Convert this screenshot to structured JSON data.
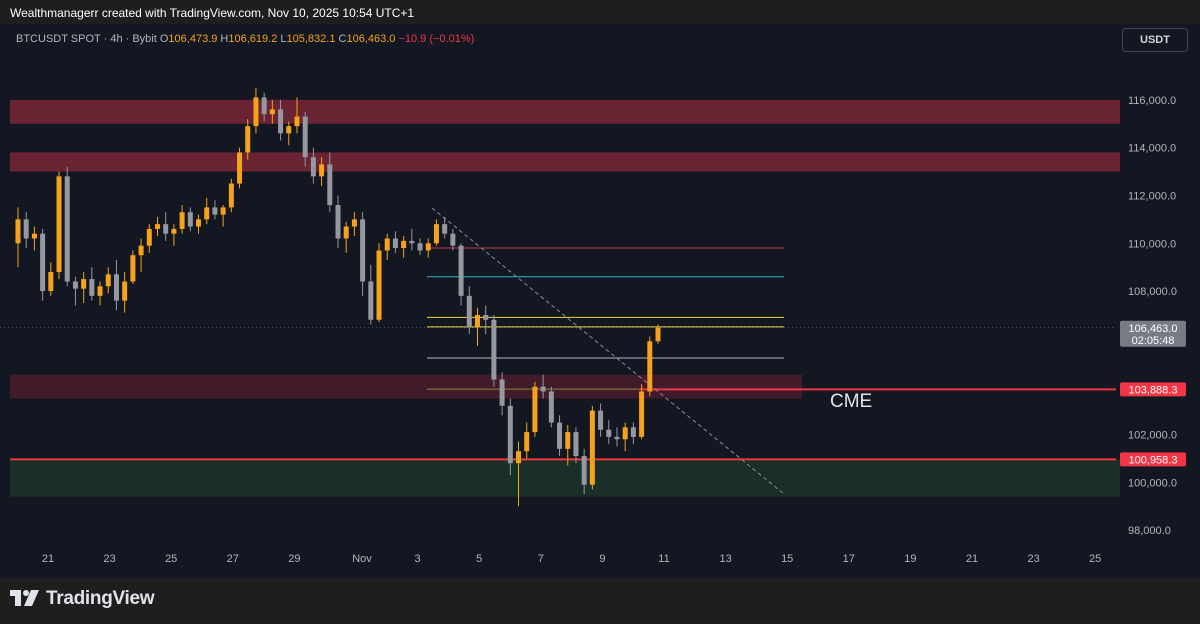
{
  "header": {
    "attribution": "Wealthmanagerr created with TradingView.com, Nov 10, 2025 10:54 UTC+1"
  },
  "legend": {
    "symbol": "BTCUSDT SPOT · 4h · Bybit",
    "o_label": "O",
    "o": "106,473.9",
    "h_label": "H",
    "h": "106,619.2",
    "l_label": "L",
    "l": "105,832.1",
    "c_label": "C",
    "c": "106,463.0",
    "change": "−10.9 (−0.01%)"
  },
  "toolbar": {
    "currency": "USDT"
  },
  "footer": {
    "brand": "TradingView"
  },
  "chart_data": {
    "type": "candlestick",
    "ylim": [
      97000,
      117500
    ],
    "y_ticks": [
      "116,000.0",
      "114,000.0",
      "112,000.0",
      "110,000.0",
      "108,000.0",
      "102,000.0",
      "100,000.0",
      "98,000.0"
    ],
    "x_ticks": [
      "21",
      "23",
      "25",
      "27",
      "29",
      "Nov",
      "3",
      "5",
      "7",
      "9",
      "11",
      "13",
      "15",
      "17",
      "19",
      "21",
      "23",
      "25"
    ],
    "price_labels": [
      {
        "price": 106463,
        "text": "106,463.0",
        "sub": "02:05:48",
        "color": "#787b86"
      },
      {
        "price": 103888.3,
        "text": "103,888.3",
        "color": "#f23645"
      },
      {
        "price": 100958.3,
        "text": "100,958.3",
        "color": "#f23645"
      }
    ],
    "zones": [
      {
        "top": 116000,
        "bottom": 115000,
        "color": "#7a2636"
      },
      {
        "top": 113800,
        "bottom": 113000,
        "color": "#7a2636"
      },
      {
        "top": 104500,
        "bottom": 103500,
        "color": "#4a1c2a"
      },
      {
        "top": 100958,
        "bottom": 99400,
        "color": "#1c3428"
      }
    ],
    "hlines": [
      {
        "price": 109800,
        "color": "#c2354a"
      },
      {
        "price": 108600,
        "color": "#2fb7c9"
      },
      {
        "price": 106900,
        "color": "#f2d43c"
      },
      {
        "price": 106500,
        "color": "#f2d43c"
      },
      {
        "price": 105200,
        "color": "#b2b5be"
      },
      {
        "price": 103900,
        "color": "#8a8a3a"
      }
    ],
    "annotation": "CME",
    "candles": [
      [
        110000,
        111500,
        109000,
        111000
      ],
      [
        111000,
        111300,
        109800,
        110200
      ],
      [
        110200,
        110700,
        109700,
        110400
      ],
      [
        110400,
        110600,
        107600,
        108000
      ],
      [
        108000,
        109200,
        107800,
        108800
      ],
      [
        108800,
        113000,
        108500,
        112800
      ],
      [
        112800,
        113200,
        108200,
        108400
      ],
      [
        108400,
        108600,
        107400,
        108100
      ],
      [
        108100,
        108800,
        107500,
        108500
      ],
      [
        108500,
        109000,
        107600,
        107800
      ],
      [
        107800,
        108400,
        107400,
        108200
      ],
      [
        108200,
        109000,
        107900,
        108700
      ],
      [
        108700,
        109300,
        107200,
        107600
      ],
      [
        107600,
        108800,
        107100,
        108400
      ],
      [
        108400,
        109700,
        108300,
        109500
      ],
      [
        109500,
        110200,
        108800,
        109900
      ],
      [
        109900,
        110800,
        109600,
        110600
      ],
      [
        110600,
        111100,
        110300,
        110800
      ],
      [
        110800,
        111300,
        110100,
        110400
      ],
      [
        110400,
        110800,
        109900,
        110600
      ],
      [
        110600,
        111600,
        110400,
        111300
      ],
      [
        111300,
        111500,
        110500,
        110700
      ],
      [
        110700,
        111200,
        110400,
        111000
      ],
      [
        111000,
        111900,
        110800,
        111500
      ],
      [
        111500,
        111800,
        111000,
        111200
      ],
      [
        111200,
        111600,
        110700,
        111500
      ],
      [
        111500,
        112700,
        111300,
        112500
      ],
      [
        112500,
        114000,
        112300,
        113800
      ],
      [
        113800,
        115200,
        113500,
        114900
      ],
      [
        114900,
        116500,
        114600,
        116100
      ],
      [
        116100,
        116300,
        115100,
        115400
      ],
      [
        115400,
        116000,
        115000,
        115600
      ],
      [
        115600,
        116000,
        114300,
        114600
      ],
      [
        114600,
        115100,
        114100,
        114900
      ],
      [
        114900,
        116100,
        114600,
        115300
      ],
      [
        115300,
        115500,
        113200,
        113600
      ],
      [
        113600,
        114000,
        112500,
        112800
      ],
      [
        112800,
        113600,
        112400,
        113300
      ],
      [
        113300,
        113800,
        111300,
        111600
      ],
      [
        111600,
        112000,
        109800,
        110200
      ],
      [
        110200,
        110900,
        109600,
        110700
      ],
      [
        110700,
        111300,
        110300,
        111000
      ],
      [
        111000,
        111300,
        107800,
        108400
      ],
      [
        108400,
        109100,
        106600,
        106800
      ],
      [
        106800,
        110000,
        106700,
        109700
      ],
      [
        109700,
        110400,
        109300,
        110200
      ],
      [
        110200,
        110500,
        109600,
        109800
      ],
      [
        109800,
        110300,
        109400,
        110100
      ],
      [
        110100,
        110600,
        109700,
        110000
      ],
      [
        110000,
        110200,
        109500,
        109700
      ],
      [
        109700,
        110200,
        109400,
        110000
      ],
      [
        110000,
        111000,
        109900,
        110800
      ],
      [
        110800,
        111100,
        110200,
        110400
      ],
      [
        110400,
        110600,
        109700,
        109900
      ],
      [
        109900,
        110000,
        107400,
        107800
      ],
      [
        107800,
        108200,
        106200,
        106500
      ],
      [
        106500,
        107300,
        105700,
        107000
      ],
      [
        107000,
        107400,
        106200,
        106800
      ],
      [
        106800,
        107000,
        104000,
        104300
      ],
      [
        104300,
        104600,
        102800,
        103200
      ],
      [
        103200,
        103500,
        100300,
        100800
      ],
      [
        100800,
        101700,
        99000,
        101300
      ],
      [
        101300,
        102500,
        101000,
        102100
      ],
      [
        102100,
        104200,
        101900,
        104000
      ],
      [
        104000,
        104500,
        103500,
        103800
      ],
      [
        103800,
        104000,
        102300,
        102500
      ],
      [
        102500,
        102800,
        101100,
        101400
      ],
      [
        101400,
        102400,
        100700,
        102100
      ],
      [
        102100,
        102300,
        100800,
        101100
      ],
      [
        101100,
        101400,
        99500,
        99900
      ],
      [
        99900,
        103200,
        99700,
        103000
      ],
      [
        103000,
        103300,
        101900,
        102200
      ],
      [
        102200,
        102600,
        101600,
        101900
      ],
      [
        101900,
        102300,
        101500,
        101800
      ],
      [
        101800,
        102500,
        101300,
        102300
      ],
      [
        102300,
        102500,
        101600,
        101900
      ],
      [
        101900,
        104100,
        101800,
        103800
      ],
      [
        103800,
        106100,
        103600,
        105900
      ],
      [
        105900,
        106600,
        105800,
        106463
      ]
    ]
  }
}
